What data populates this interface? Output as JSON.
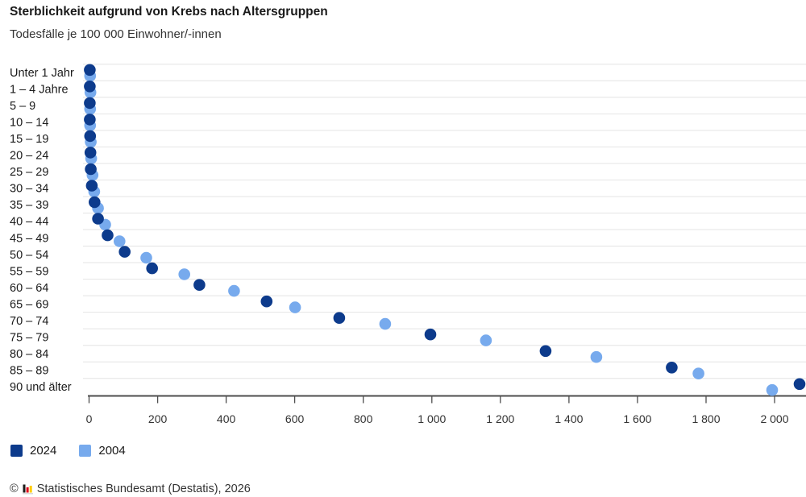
{
  "header": {
    "title": "Sterblichkeit aufgrund von Krebs nach Altersgruppen",
    "subtitle": "Todesfälle je 100 000 Einwohner/-innen"
  },
  "legend": {
    "items": [
      {
        "label": "2024",
        "color": "#0d3b8c"
      },
      {
        "label": "2004",
        "color": "#77aaed"
      }
    ]
  },
  "footer": {
    "copyright": "©",
    "source": "Statistisches Bundesamt (Destatis), 2026",
    "logo_colors": {
      "bar1": "#1d1d1b",
      "bar2": "#e10019",
      "bar3": "#ffcc00",
      "baseline": "#cfcfcf"
    }
  },
  "chart_data": {
    "type": "scatter",
    "orientation": "horizontal",
    "title": "Sterblichkeit aufgrund von Krebs nach Altersgruppen",
    "subtitle": "Todesfälle je 100 000 Einwohner/-innen",
    "xlabel": "",
    "ylabel": "",
    "xlim": [
      0,
      2092
    ],
    "grid": "horizontal-band-separators",
    "legend_position": "bottom-left",
    "categories": [
      "Unter 1 Jahr",
      "1 – 4 Jahre",
      "5 – 9",
      "10 – 14",
      "15 – 19",
      "20 – 24",
      "25 – 29",
      "30 – 34",
      "35 – 39",
      "40 – 44",
      "45 – 49",
      "50 – 54",
      "55 – 59",
      "60 – 64",
      "65 – 69",
      "70 – 74",
      "75 – 79",
      "80 – 84",
      "85 – 89",
      "90 und älter"
    ],
    "series": [
      {
        "name": "2024",
        "color": "#0d3b8c",
        "values": [
          2,
          2,
          2,
          2,
          3,
          4,
          5,
          8,
          16,
          26,
          54,
          104,
          184,
          322,
          518,
          730,
          996,
          1332,
          1700,
          2073
        ]
      },
      {
        "name": "2004",
        "color": "#77aaed",
        "values": [
          3,
          4,
          3,
          3,
          5,
          6,
          10,
          15,
          26,
          47,
          89,
          167,
          278,
          423,
          601,
          864,
          1158,
          1480,
          1778,
          1993
        ]
      }
    ],
    "x_axis": {
      "min": 0,
      "tick_interval": 200,
      "tick_labels": [
        "0",
        "200",
        "400",
        "600",
        "800",
        "1 000",
        "1 200",
        "1 400",
        "1 600",
        "1 800",
        "2 000"
      ]
    }
  }
}
